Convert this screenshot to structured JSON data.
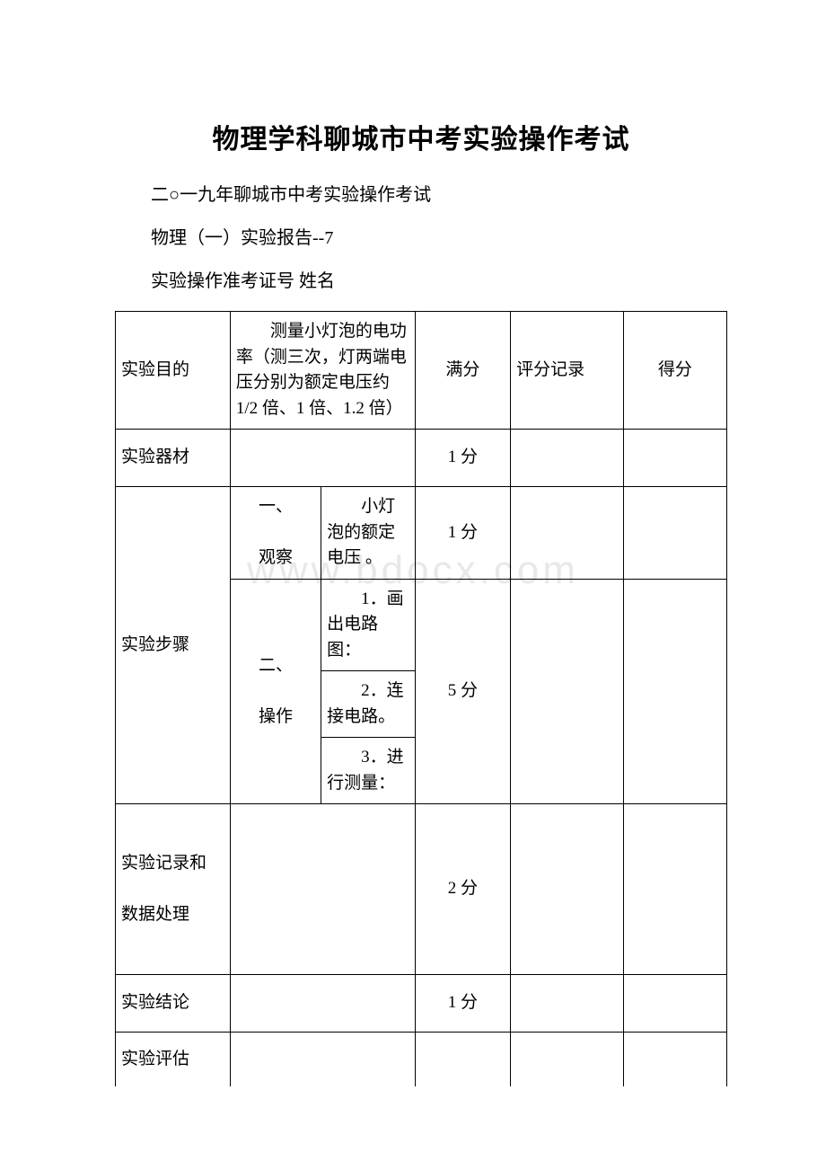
{
  "doc": {
    "title": "物理学科聊城市中考实验操作考试",
    "subtitle": "二○一九年聊城市中考实验操作考试",
    "report_line": "物理（一）实验报告--7",
    "id_line": "实验操作准考证号 姓名",
    "watermark": "www.bdocx.com"
  },
  "hdr": {
    "full": "满分",
    "rec": "评分记录",
    "score": "得分"
  },
  "rows": {
    "purpose": {
      "label": "实验目的",
      "text": "测量小灯泡的电功率（测三次，灯两端电压分别为额定电压约1/2 倍、1 倍、1.2 倍）"
    },
    "equip": {
      "label": "实验器材",
      "full": "1 分"
    },
    "steps": {
      "label": "实验步骤",
      "obs_label": "一、",
      "obs_label2": "观察",
      "obs_text": "小灯泡的额定电压 。",
      "obs_full": "1 分",
      "op_label": "二、",
      "op_label2": "操作",
      "op1": "1．画出电路图：",
      "op2": "2．连接电路。",
      "op3": "3．进行测量：",
      "op_full": "5 分"
    },
    "record": {
      "label1": "实验记录和",
      "label2": "数据处理",
      "full": "2 分"
    },
    "conclusion": {
      "label": "实验结论",
      "full": "1 分"
    },
    "assess": {
      "label": "实验评估"
    }
  }
}
